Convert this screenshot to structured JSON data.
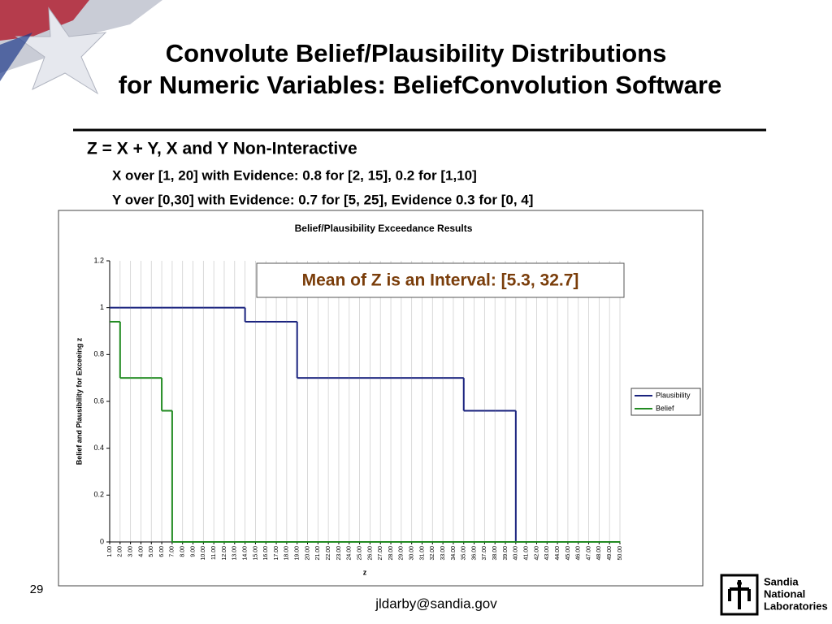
{
  "slide": {
    "title_line1": "Convolute Belief/Plausibility Distributions",
    "title_line2": "for Numeric Variables: BeliefConvolution Software",
    "heading": "Z = X + Y, X and Y Non-Interactive",
    "bullets": [
      "X over [1, 20]  with Evidence: 0.8 for [2, 15], 0.2 for [1,10]",
      "Y over [0,30] with Evidence: 0.7 for [5, 25], Evidence 0.3 for [0, 4]"
    ],
    "page_number": "29",
    "footer": "jldarby@sandia.gov",
    "logo": [
      "Sandia",
      "National",
      "Laboratories"
    ]
  },
  "chart_data": {
    "type": "line",
    "step": "post",
    "title": "Belief/Plausibility Exceedance Results",
    "xlabel": "z",
    "ylabel": "Belief and Plausibility for Exceeing z",
    "annotation": "Mean of Z is an Interval: [5.3, 32.7]",
    "categories": [
      "1.00",
      "2.00",
      "3.00",
      "4.00",
      "5.00",
      "6.00",
      "7.00",
      "8.00",
      "9.00",
      "10.00",
      "11.00",
      "12.00",
      "13.00",
      "14.00",
      "15.00",
      "16.00",
      "17.00",
      "18.00",
      "19.00",
      "20.00",
      "21.00",
      "22.00",
      "23.00",
      "24.00",
      "25.00",
      "26.00",
      "27.00",
      "28.00",
      "29.00",
      "30.00",
      "31.00",
      "32.00",
      "33.00",
      "34.00",
      "35.00",
      "36.00",
      "37.00",
      "38.00",
      "39.00",
      "40.00",
      "41.00",
      "42.00",
      "43.00",
      "44.00",
      "45.00",
      "46.00",
      "47.00",
      "48.00",
      "49.00",
      "50.00"
    ],
    "series": [
      {
        "name": "Plausibility",
        "color": "#1a237e",
        "values": [
          1,
          1,
          1,
          1,
          1,
          1,
          1,
          1,
          1,
          1,
          1,
          1,
          1,
          0.94,
          0.94,
          0.94,
          0.94,
          0.94,
          0.7,
          0.7,
          0.7,
          0.7,
          0.7,
          0.7,
          0.7,
          0.7,
          0.7,
          0.7,
          0.7,
          0.7,
          0.7,
          0.7,
          0.7,
          0.7,
          0.56,
          0.56,
          0.56,
          0.56,
          0.56,
          0,
          0,
          0,
          0,
          0,
          0,
          0,
          0,
          0,
          0,
          0
        ]
      },
      {
        "name": "Belief",
        "color": "#228b22",
        "values": [
          0.94,
          0.7,
          0.7,
          0.7,
          0.7,
          0.56,
          0,
          0,
          0,
          0,
          0,
          0,
          0,
          0,
          0,
          0,
          0,
          0,
          0,
          0,
          0,
          0,
          0,
          0,
          0,
          0,
          0,
          0,
          0,
          0,
          0,
          0,
          0,
          0,
          0,
          0,
          0,
          0,
          0,
          0,
          0,
          0,
          0,
          0,
          0,
          0,
          0,
          0,
          0,
          0
        ]
      }
    ],
    "ylim": [
      0,
      1.2
    ],
    "yticks": [
      0,
      0.2,
      0.4,
      0.6,
      0.8,
      1,
      1.2
    ],
    "grid": true,
    "legend": "right"
  }
}
